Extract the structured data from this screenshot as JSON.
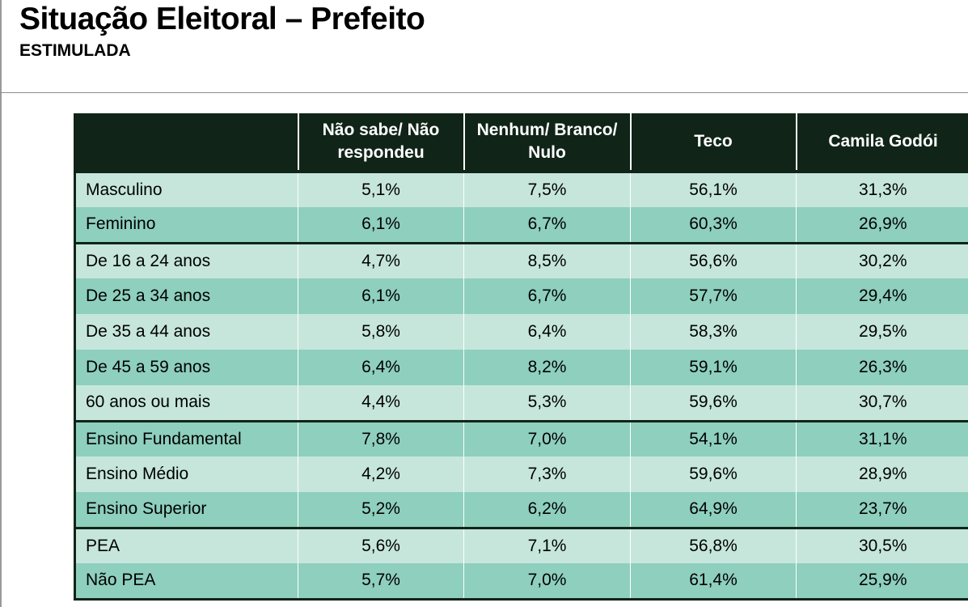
{
  "title": "Situação Eleitoral – Prefeito",
  "subtitle": "ESTIMULADA",
  "chart_data": {
    "type": "table",
    "columns": [
      "",
      "Não sabe/ Não respondeu",
      "Nenhum/ Branco/ Nulo",
      "Teco",
      "Camila Godói"
    ],
    "column_lines": [
      [
        ""
      ],
      [
        "Não sabe/ Não",
        "respondeu"
      ],
      [
        "Nenhum/ Branco/",
        "Nulo"
      ],
      [
        "Teco"
      ],
      [
        "Camila Godói"
      ]
    ],
    "rows": [
      {
        "label": "Masculino",
        "values": [
          "5,1%",
          "7,5%",
          "56,1%",
          "31,3%"
        ]
      },
      {
        "label": "Feminino",
        "values": [
          "6,1%",
          "6,7%",
          "60,3%",
          "26,9%"
        ]
      },
      {
        "label": "De 16 a 24 anos",
        "values": [
          "4,7%",
          "8,5%",
          "56,6%",
          "30,2%"
        ]
      },
      {
        "label": "De 25 a 34 anos",
        "values": [
          "6,1%",
          "6,7%",
          "57,7%",
          "29,4%"
        ]
      },
      {
        "label": "De 35 a 44 anos",
        "values": [
          "5,8%",
          "6,4%",
          "58,3%",
          "29,5%"
        ]
      },
      {
        "label": "De 45 a 59 anos",
        "values": [
          "6,4%",
          "8,2%",
          "59,1%",
          "26,3%"
        ]
      },
      {
        "label": "60 anos ou mais",
        "values": [
          "4,4%",
          "5,3%",
          "59,6%",
          "30,7%"
        ]
      },
      {
        "label": "Ensino Fundamental",
        "values": [
          "7,8%",
          "7,0%",
          "54,1%",
          "31,1%"
        ]
      },
      {
        "label": "Ensino Médio",
        "values": [
          "4,2%",
          "7,3%",
          "59,6%",
          "28,9%"
        ]
      },
      {
        "label": "Ensino Superior",
        "values": [
          "5,2%",
          "6,2%",
          "64,9%",
          "23,7%"
        ]
      },
      {
        "label": "PEA",
        "values": [
          "5,6%",
          "7,1%",
          "56,8%",
          "30,5%"
        ]
      },
      {
        "label": "Não PEA",
        "values": [
          "5,7%",
          "7,0%",
          "61,4%",
          "25,9%"
        ]
      }
    ],
    "group_starts": [
      2,
      7,
      10
    ],
    "colors": {
      "header": "#102418",
      "row_light": "#c6e6dc",
      "row_dark": "#8ecfbd"
    }
  }
}
